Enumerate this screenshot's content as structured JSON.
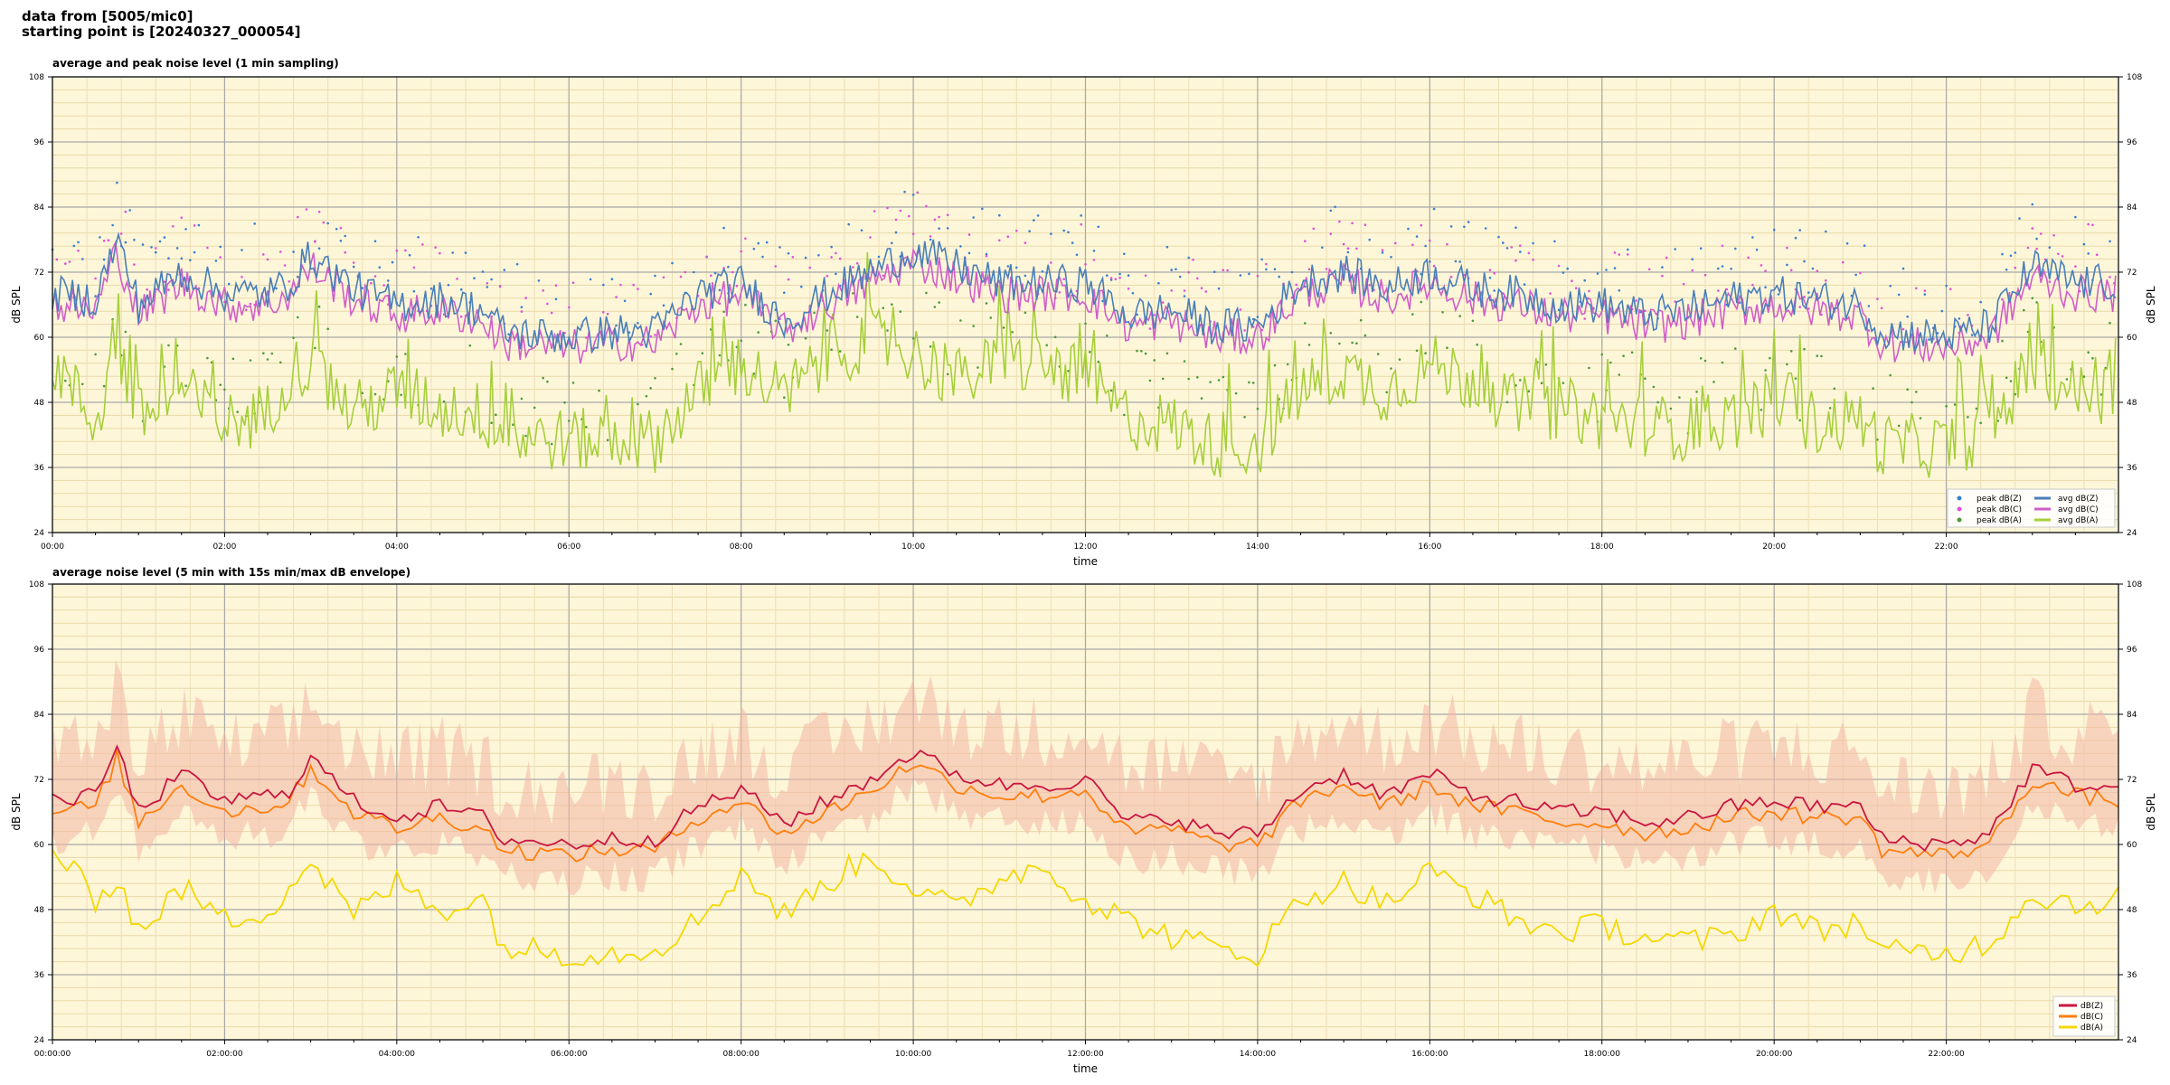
{
  "header": {
    "line1": "data from [5005/mic0]",
    "line2": "starting point is [20240327_000054]"
  },
  "colors": {
    "bg": "#fdf6d9",
    "peakZ": "#3a7fd0",
    "peakC": "#e24fd6",
    "peakA": "#4c9a3b",
    "avgZ": "#4a7fb8",
    "avgC": "#d05ec8",
    "avgA": "#a6cf3a",
    "bZ": "#c9163f",
    "bC": "#ff7f0e",
    "bA": "#f5d800",
    "env": "#f4b6a4"
  },
  "chart_data": [
    {
      "type": "scatter+line",
      "title": "average and peak noise level (1 min sampling)",
      "xlabel": "time",
      "ylabel": "dB SPL",
      "ylim": [
        24,
        108
      ],
      "yticks": [
        "24",
        "36",
        "48",
        "60",
        "72",
        "84",
        "96",
        "108"
      ],
      "xticks": [
        "00:00",
        "02:00",
        "04:00",
        "06:00",
        "08:00",
        "10:00",
        "12:00",
        "14:00",
        "16:00",
        "18:00",
        "20:00",
        "22:00"
      ],
      "grid": true,
      "legend_position": "bottom-right",
      "legend": [
        "peak dB(Z)",
        "peak dB(C)",
        "peak dB(A)",
        "avg dB(Z)",
        "avg dB(C)",
        "avg dB(A)"
      ],
      "x_hours": [
        0,
        0.5,
        0.75,
        1,
        1.5,
        2,
        2.5,
        2.75,
        3,
        3.5,
        4,
        4.5,
        5,
        5.25,
        6,
        6.5,
        7,
        7.5,
        8,
        8.5,
        9,
        9.5,
        10,
        10.5,
        11,
        11.5,
        12,
        12.5,
        13,
        13.5,
        14,
        14.5,
        15,
        15.5,
        16,
        16.5,
        17,
        17.5,
        18,
        18.5,
        19,
        19.5,
        20,
        20.5,
        21,
        21.25,
        22,
        22.5,
        23,
        23.5,
        24
      ],
      "series": [
        {
          "name": "avg dB(Z)",
          "values": [
            68,
            67,
            78,
            66,
            72,
            68,
            68,
            70,
            75,
            69,
            66,
            67,
            65,
            61,
            60,
            61,
            61,
            68,
            70,
            63,
            68,
            72,
            76,
            73,
            70,
            70,
            70,
            64,
            65,
            62,
            62,
            70,
            72,
            69,
            72,
            69,
            68,
            66,
            66,
            64,
            65,
            67,
            68,
            67,
            66,
            61,
            60,
            62,
            73,
            70,
            70
          ]
        },
        {
          "name": "avg dB(C)",
          "values": [
            66,
            65,
            76,
            64,
            70,
            66,
            66,
            68,
            73,
            67,
            64,
            65,
            63,
            59,
            58,
            59,
            59,
            66,
            68,
            61,
            66,
            70,
            74,
            71,
            68,
            68,
            68,
            62,
            63,
            60,
            60,
            68,
            70,
            67,
            70,
            67,
            66,
            64,
            64,
            62,
            63,
            65,
            66,
            65,
            64,
            59,
            58,
            60,
            71,
            68,
            68
          ]
        },
        {
          "name": "avg dB(A)",
          "values": [
            56,
            44,
            58,
            45,
            50,
            44,
            46,
            54,
            55,
            46,
            50,
            47,
            46,
            42,
            41,
            41,
            41,
            50,
            55,
            49,
            56,
            60,
            57,
            52,
            55,
            55,
            52,
            45,
            44,
            40,
            40,
            50,
            54,
            50,
            55,
            52,
            47,
            47,
            45,
            44,
            43,
            45,
            48,
            44,
            45,
            40,
            40,
            43,
            55,
            50,
            50
          ]
        }
      ]
    },
    {
      "type": "line+envelope",
      "title": "average noise level (5 min with 15s min/max dB envelope)",
      "xlabel": "time",
      "ylabel": "dB SPL",
      "ylim": [
        24,
        108
      ],
      "yticks": [
        "24",
        "36",
        "48",
        "60",
        "72",
        "84",
        "96",
        "108"
      ],
      "xticks": [
        "00:00:00",
        "02:00:00",
        "04:00:00",
        "06:00:00",
        "08:00:00",
        "10:00:00",
        "12:00:00",
        "14:00:00",
        "16:00:00",
        "18:00:00",
        "20:00:00",
        "22:00:00"
      ],
      "grid": true,
      "legend_position": "bottom-right",
      "legend": [
        "dB(Z)",
        "dB(C)",
        "dB(A)"
      ],
      "x_hours": [
        0,
        0.5,
        0.75,
        1,
        1.5,
        2,
        2.5,
        2.75,
        3,
        3.5,
        4,
        4.5,
        5,
        5.25,
        6,
        6.5,
        7,
        7.5,
        8,
        8.5,
        9,
        9.5,
        10,
        10.5,
        11,
        11.5,
        12,
        12.5,
        13,
        13.5,
        14,
        14.5,
        15,
        15.5,
        16,
        16.5,
        17,
        17.5,
        18,
        18.5,
        19,
        19.5,
        20,
        20.5,
        21,
        21.25,
        22,
        22.5,
        23,
        23.5,
        24
      ],
      "series": [
        {
          "name": "dB(Z)",
          "values": [
            68,
            69,
            78,
            66,
            73,
            68,
            69,
            70,
            76,
            68,
            65,
            67,
            65,
            61,
            60,
            61,
            61,
            67,
            70,
            64,
            68,
            72,
            77,
            73,
            71,
            71,
            72,
            64,
            65,
            62,
            62,
            70,
            73,
            69,
            73,
            69,
            68,
            66,
            66,
            64,
            65,
            67,
            68,
            67,
            67,
            61,
            60,
            62,
            74,
            71,
            70
          ]
        },
        {
          "name": "dB(C)",
          "values": [
            66,
            67,
            76,
            64,
            71,
            66,
            67,
            68,
            74,
            66,
            63,
            65,
            63,
            59,
            58,
            59,
            59,
            65,
            68,
            62,
            66,
            70,
            75,
            71,
            69,
            69,
            70,
            62,
            63,
            60,
            60,
            68,
            71,
            67,
            71,
            67,
            66,
            64,
            64,
            62,
            63,
            65,
            66,
            65,
            65,
            59,
            58,
            60,
            72,
            69,
            68
          ]
        },
        {
          "name": "dB(A)",
          "values": [
            59,
            50,
            54,
            44,
            52,
            46,
            48,
            52,
            57,
            47,
            53,
            48,
            50,
            41,
            40,
            40,
            41,
            46,
            55,
            47,
            53,
            58,
            52,
            48,
            54,
            56,
            50,
            46,
            43,
            41,
            40,
            50,
            53,
            49,
            55,
            51,
            46,
            44,
            45,
            43,
            42,
            43,
            48,
            44,
            46,
            40,
            40,
            42,
            51,
            49,
            50
          ]
        }
      ]
    }
  ]
}
